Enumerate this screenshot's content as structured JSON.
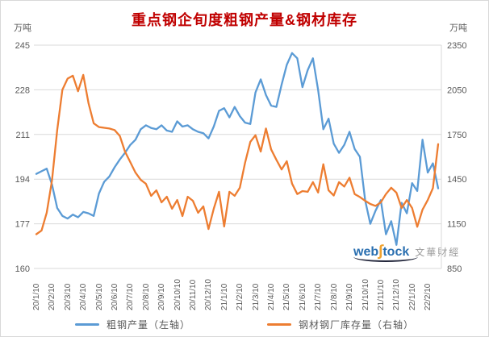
{
  "title": "重点钢企旬度粗钢产量&钢材库存",
  "title_color": "#c00000",
  "left_unit": "万吨",
  "right_unit": "万吨",
  "watermark": {
    "web": "web",
    "s": "∫",
    "tock": "tock",
    "cn": "文華財經"
  },
  "chart_data": {
    "type": "line",
    "title": "重点钢企旬度粗钢产量&钢材库存",
    "grid": true,
    "legend_position": "bottom",
    "x_label_every": 3,
    "x": [
      "20/1/10",
      "20/1/20",
      "20/1/31",
      "20/2/10",
      "20/2/20",
      "20/2/29",
      "20/3/10",
      "20/3/20",
      "20/3/31",
      "20/4/10",
      "20/4/20",
      "20/4/30",
      "20/5/10",
      "20/5/20",
      "20/5/31",
      "20/6/10",
      "20/6/20",
      "20/6/30",
      "20/7/10",
      "20/7/20",
      "20/7/31",
      "20/8/10",
      "20/8/20",
      "20/8/31",
      "20/9/10",
      "20/9/20",
      "20/9/30",
      "20/10/10",
      "20/10/20",
      "20/10/31",
      "20/11/10",
      "20/11/20",
      "20/11/30",
      "20/12/10",
      "20/12/20",
      "20/12/31",
      "21/1/10",
      "21/1/20",
      "21/1/31",
      "21/2/10",
      "21/2/20",
      "21/2/28",
      "21/3/10",
      "21/3/20",
      "21/3/31",
      "21/4/10",
      "21/4/20",
      "21/4/30",
      "21/5/10",
      "21/5/20",
      "21/5/31",
      "21/6/10",
      "21/6/20",
      "21/6/30",
      "21/7/10",
      "21/7/20",
      "21/7/31",
      "21/8/10",
      "21/8/20",
      "21/8/31",
      "21/9/10",
      "21/9/20",
      "21/9/30",
      "21/10/10",
      "21/10/20",
      "21/10/31",
      "21/11/10",
      "21/11/20",
      "21/11/30",
      "21/12/10",
      "21/12/20",
      "21/12/31",
      "22/1/10",
      "22/1/20",
      "22/1/31",
      "22/2/10",
      "22/2/20",
      "22/2/28"
    ],
    "left_axis": {
      "unit": "万吨",
      "min": 160,
      "max": 245,
      "ticks": [
        245,
        228,
        211,
        194,
        177,
        160
      ]
    },
    "right_axis": {
      "unit": "万吨",
      "min": 850,
      "max": 2350,
      "ticks": [
        2350,
        2050,
        1750,
        1450,
        1150,
        850
      ]
    },
    "series": [
      {
        "name": "粗钢产量（左轴）",
        "axis": "left",
        "color": "#5b9bd5",
        "values": [
          196,
          197,
          198,
          192,
          183,
          180,
          179,
          180.5,
          179.5,
          181.5,
          181,
          180,
          188.5,
          193,
          195,
          198.5,
          201.5,
          204,
          207,
          209,
          213,
          214.5,
          213.5,
          213,
          214.5,
          212.5,
          212,
          216,
          214,
          214.5,
          213,
          212,
          211.5,
          209.5,
          214,
          220,
          221,
          217.5,
          221.5,
          218,
          215.5,
          215,
          227,
          232,
          226,
          222,
          221.5,
          230,
          237.5,
          242,
          240,
          229,
          235.5,
          240,
          228,
          213,
          217,
          207.5,
          204,
          207,
          212,
          205.5,
          202.5,
          186,
          177,
          182,
          186,
          173,
          178,
          169,
          185,
          181,
          192.5,
          189.5,
          209,
          196.5,
          200,
          190.5
        ]
      },
      {
        "name": "钢材钢厂库存量（右轴）",
        "axis": "right",
        "color": "#ed7d31",
        "values": [
          1080,
          1105,
          1225,
          1440,
          1780,
          2050,
          2125,
          2145,
          2040,
          2150,
          1960,
          1825,
          1800,
          1795,
          1790,
          1780,
          1740,
          1635,
          1565,
          1494,
          1445,
          1419,
          1338,
          1375,
          1294,
          1332,
          1251,
          1310,
          1202,
          1332,
          1305,
          1224,
          1267,
          1115,
          1251,
          1365,
          1132,
          1365,
          1338,
          1392,
          1560,
          1700,
          1745,
          1635,
          1790,
          1650,
          1580,
          1515,
          1570,
          1420,
          1350,
          1370,
          1365,
          1430,
          1360,
          1550,
          1375,
          1340,
          1430,
          1400,
          1460,
          1350,
          1330,
          1305,
          1283,
          1270,
          1294,
          1350,
          1392,
          1359,
          1256,
          1310,
          1256,
          1130,
          1245,
          1310,
          1390,
          1685
        ]
      }
    ]
  }
}
